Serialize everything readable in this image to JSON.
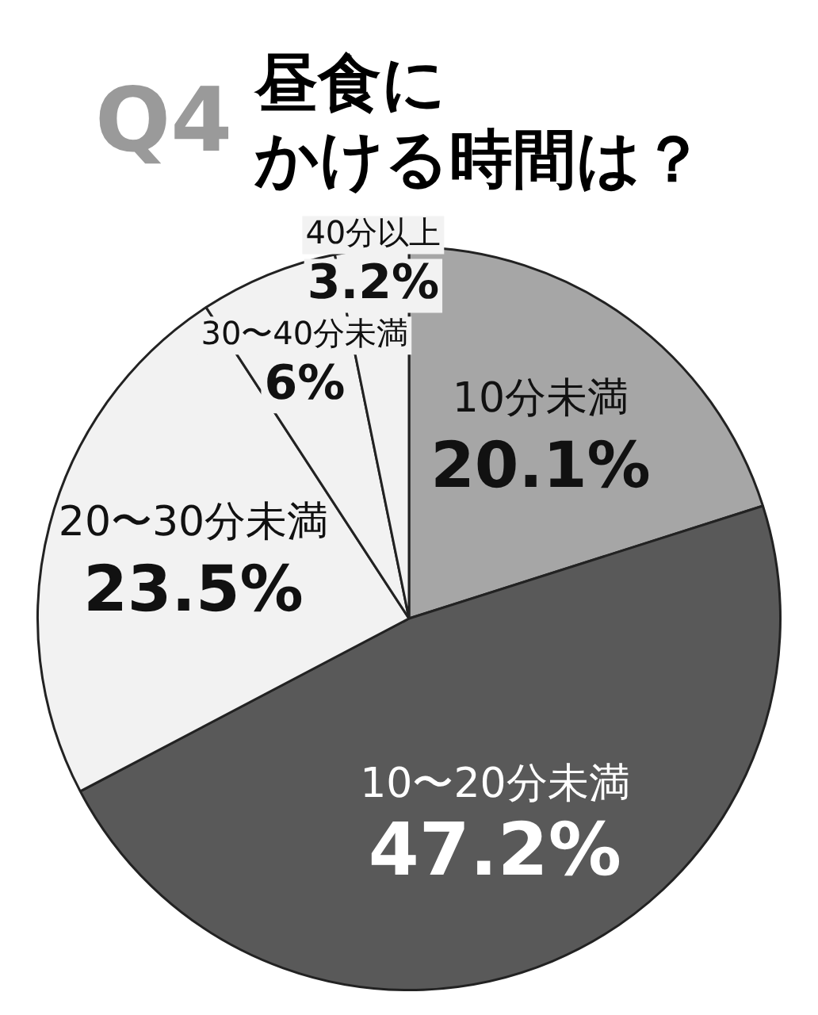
{
  "chart_data": {
    "type": "pie",
    "title": "昼食にかける時間は？",
    "annotations": [
      "Q4"
    ],
    "categories": [
      "10分未満",
      "10〜20分未満",
      "20〜30分未満",
      "30〜40分未満",
      "40分以上"
    ],
    "values": [
      20.1,
      47.2,
      23.5,
      6,
      3.2
    ],
    "colors": [
      "#a6a6a6",
      "#595959",
      "#f2f2f2",
      "#f2f2f2",
      "#f2f2f2"
    ],
    "value_labels": [
      "20.1%",
      "47.2%",
      "23.5%",
      "6%",
      "3.2%"
    ]
  }
}
